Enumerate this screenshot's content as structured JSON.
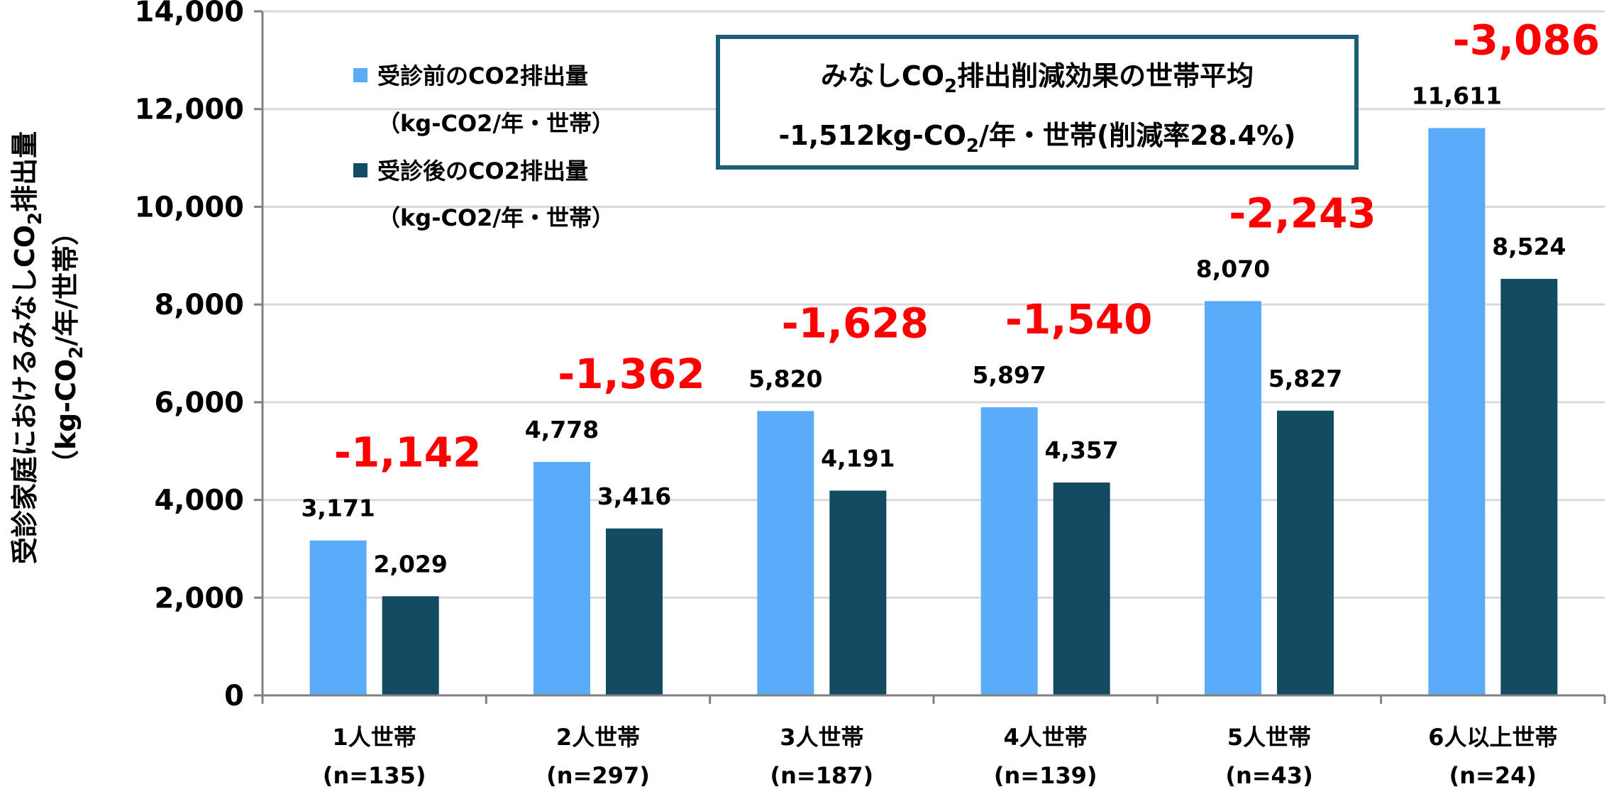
{
  "chart_data": {
    "type": "bar",
    "ylabel_line1": "受診家庭におけるみなしCO",
    "ylabel_sub": "2",
    "ylabel_line1_tail": "排出量",
    "ylabel_line2_a": "（kg-CO",
    "ylabel_line2_sub": "2",
    "ylabel_line2_b": "/年/世帯）",
    "ylim": [
      0,
      14000
    ],
    "yticks": [
      "0",
      "2,000",
      "4,000",
      "6,000",
      "8,000",
      "10,000",
      "12,000",
      "14,000"
    ],
    "ytick_values": [
      0,
      2000,
      4000,
      6000,
      8000,
      10000,
      12000,
      14000
    ],
    "categories": [
      "1人世帯",
      "2人世帯",
      "3人世帯",
      "4人世帯",
      "5人世帯",
      "6人以上世帯"
    ],
    "category_counts": [
      "(n=135)",
      "(n=297)",
      "(n=187)",
      "(n=139)",
      "(n=43)",
      "(n=24)"
    ],
    "series": [
      {
        "name": "受診前のCO2排出量",
        "name_unit": "（kg-CO2/年・世帯）",
        "color": "#5aabf8",
        "values": [
          3171,
          4778,
          5820,
          5897,
          8070,
          11611
        ],
        "labels": [
          "3,171",
          "4,778",
          "5,820",
          "5,897",
          "8,070",
          "11,611"
        ]
      },
      {
        "name": "受診後のCO2排出量",
        "name_unit": "（kg-CO2/年・世帯）",
        "color": "#124a61",
        "values": [
          2029,
          3416,
          4191,
          4357,
          5827,
          8524
        ],
        "labels": [
          "2,029",
          "3,416",
          "4,191",
          "4,357",
          "5,827",
          "8,524"
        ]
      }
    ],
    "differences": [
      "-1,142",
      "-1,362",
      "-1,628",
      "-1,540",
      "-2,243",
      "-3,086"
    ],
    "difference_color": "#ff0000",
    "grid": true,
    "legend_position": "top-left",
    "summary_box": {
      "line1_a": "みなしCO",
      "line1_sub": "2",
      "line1_b": "排出削減効果の世帯平均",
      "line2_a": "-1,512kg-CO",
      "line2_sub": "2",
      "line2_b": "/年・世帯(削減率28.4%)",
      "border_color": "#1a5e78"
    }
  }
}
